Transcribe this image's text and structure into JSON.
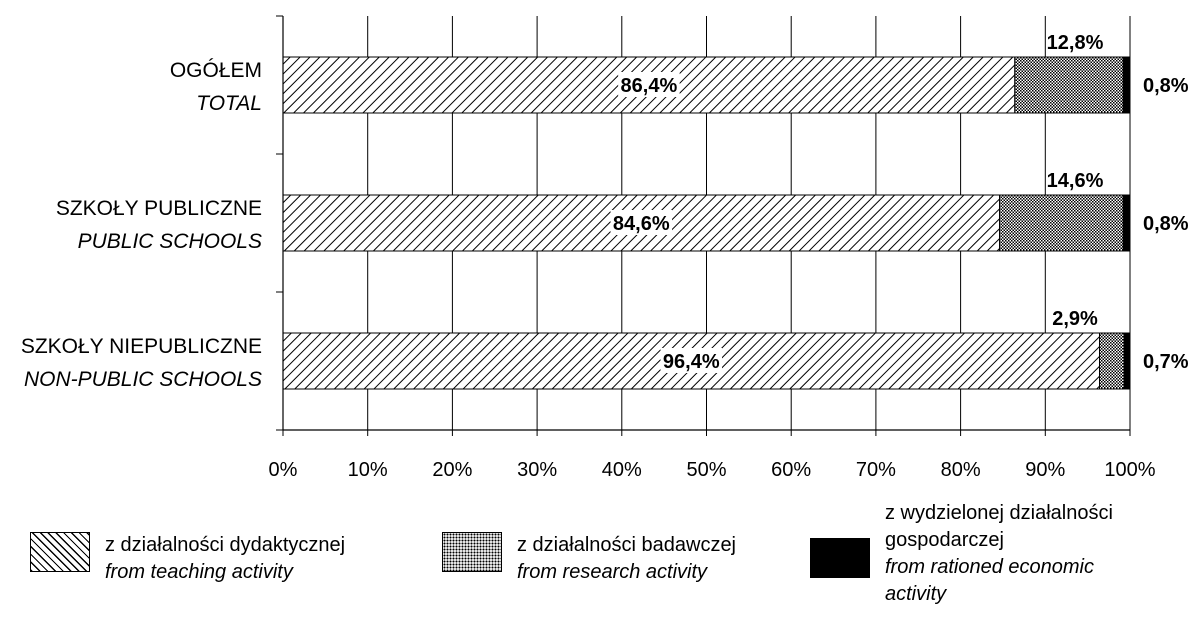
{
  "chart_data": {
    "type": "bar",
    "orientation": "horizontal",
    "stacked": true,
    "categories": [
      {
        "pl": "OGÓŁEM",
        "en": "TOTAL"
      },
      {
        "pl": "SZKOŁY PUBLICZNE",
        "en": "PUBLIC SCHOOLS"
      },
      {
        "pl": "SZKOŁY NIEPUBLICZNE",
        "en": "NON-PUBLIC SCHOOLS"
      }
    ],
    "series": [
      {
        "pl": "z działalności dydaktycznej",
        "en": "from teaching activity",
        "pattern": "diagonal-hatch",
        "values": [
          86.4,
          84.6,
          96.4
        ],
        "labels": [
          "86,4%",
          "84,6%",
          "96,4%"
        ]
      },
      {
        "pl": "z działalności badawczej",
        "en": "from research activity",
        "pattern": "crosshatch-dots",
        "values": [
          12.8,
          14.6,
          2.9
        ],
        "labels": [
          "12,8%",
          "14,6%",
          "2,9%"
        ]
      },
      {
        "pl": "z wydzielonej działalności gospodarczej",
        "en": "from rationed economic activity",
        "pattern": "solid-black",
        "values": [
          0.8,
          0.8,
          0.7
        ],
        "labels": [
          "0,8%",
          "0,8%",
          "0,7%"
        ]
      }
    ],
    "xlim": [
      0,
      100
    ],
    "xticks": [
      "0%",
      "10%",
      "20%",
      "30%",
      "40%",
      "50%",
      "60%",
      "70%",
      "80%",
      "90%",
      "100%"
    ],
    "grid": "vertical",
    "legend": "bottom"
  },
  "legend": [
    {
      "pl_lines": [
        "z działalności dydaktycznej"
      ],
      "en_lines": [
        "from teaching activity"
      ]
    },
    {
      "pl_lines": [
        "z działalności badawczej"
      ],
      "en_lines": [
        "from research activity"
      ]
    },
    {
      "pl_lines": [
        "z wydzielonej działalności",
        "gospodarczej"
      ],
      "en_lines": [
        "from rationed economic",
        "activity"
      ]
    }
  ]
}
